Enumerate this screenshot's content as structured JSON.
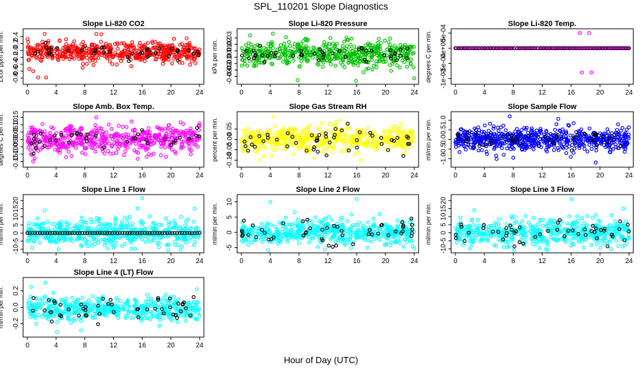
{
  "figure": {
    "title": "SPL_110201  Slope Diagnostics",
    "xlabel": "Hour of Day (UTC)"
  },
  "colors": {
    "red": "#ff0000",
    "green": "#00c000",
    "magenta": "#ff00ff",
    "yellow": "#ffff00",
    "blue": "#0000ff",
    "cyan": "#00ffff",
    "flagged": "#000000"
  },
  "chart_data": [
    {
      "type": "scatter",
      "title": "Slope Li-820 CO2",
      "ylabel": "Licor ppm per min.",
      "color": "red",
      "xlim": [
        0,
        24
      ],
      "xticks": [
        0,
        4,
        8,
        12,
        16,
        20,
        24
      ],
      "ylim": [
        -0.9,
        0.55
      ],
      "yticks": [
        -0.8,
        -0.6,
        -0.4,
        -0.2,
        0.0,
        0.2,
        0.4
      ],
      "ytick_labels": [
        "-0.8",
        "-0.6",
        "-0.4",
        "-0.2",
        "0.0",
        "0.2",
        "0.4"
      ],
      "spread": 0.14,
      "center": -0.05,
      "outliers": [
        [
          2.4,
          0.48
        ],
        [
          9.6,
          0.48
        ],
        [
          10.3,
          0.47
        ],
        [
          1.5,
          -0.78
        ],
        [
          2.6,
          -0.78
        ],
        [
          0.8,
          -0.6
        ],
        [
          7.7,
          -0.5
        ],
        [
          9.2,
          -0.42
        ]
      ],
      "black_n": 40,
      "black_spread": 0.09,
      "black_baseline": false,
      "n": 520
    },
    {
      "type": "scatter",
      "title": "Slope Li-820 Pressure",
      "ylabel": "kPa per min.",
      "color": "green",
      "xlim": [
        0,
        24
      ],
      "xticks": [
        0,
        4,
        8,
        12,
        16,
        20,
        24
      ],
      "ylim": [
        -0.038,
        0.04
      ],
      "yticks": [
        -0.03,
        -0.02,
        -0.01,
        0.0,
        0.01,
        0.02,
        0.03
      ],
      "ytick_labels": [
        "-0.03",
        "-0.02",
        "-0.01",
        "0.00",
        "0.01",
        "0.02",
        "0.03"
      ],
      "spread": 0.01,
      "center": 0.005,
      "outliers": [
        [
          1.2,
          0.034
        ],
        [
          7.8,
          -0.036
        ],
        [
          15.9,
          -0.037
        ],
        [
          24,
          -0.033
        ],
        [
          6.2,
          0.031
        ]
      ],
      "black_n": 45,
      "black_spread": 0.006,
      "black_baseline": false,
      "n": 520
    },
    {
      "type": "scatter",
      "title": "Slope Li-820 Temp.",
      "ylabel": "degrees C per min.",
      "color": "magenta",
      "xlim": [
        0,
        24
      ],
      "xticks": [
        0,
        4,
        8,
        12,
        16,
        20,
        24
      ],
      "ylim": [
        -0.0011,
        0.00055
      ],
      "yticks": [
        -0.001,
        -0.0005,
        0.0,
        0.0005
      ],
      "ytick_labels": [
        "-1e-03",
        "-5e-04",
        "0e+00",
        "5e-04"
      ],
      "spread": 0.0,
      "center": 0.0,
      "outliers": [
        [
          17.2,
          0.0005
        ],
        [
          18.5,
          0.0005
        ],
        [
          17.5,
          -0.0008
        ],
        [
          18.8,
          -0.0008
        ]
      ],
      "black_n": 60,
      "black_spread": 0.0,
      "black_baseline": true,
      "n": 300
    },
    {
      "type": "scatter",
      "title": "Slope Amb. Box Temp.",
      "ylabel": "degrees C per min.",
      "color": "magenta",
      "xlim": [
        0,
        24
      ],
      "xticks": [
        0,
        4,
        8,
        12,
        16,
        20,
        24
      ],
      "ylim": [
        -0.17,
        0.17
      ],
      "yticks": [
        -0.15,
        -0.1,
        -0.05,
        0.0,
        0.05,
        0.1,
        0.15
      ],
      "ytick_labels": [
        "-0.15",
        "-0.10",
        "-0.05",
        "0.00",
        "0.05",
        "0.10",
        "0.15"
      ],
      "spread": 0.045,
      "center": 0.0,
      "outliers": [
        [
          9.6,
          0.15
        ],
        [
          0.5,
          -0.1
        ],
        [
          5.4,
          -0.12
        ],
        [
          8.1,
          -0.1
        ],
        [
          10.5,
          -0.08
        ],
        [
          24,
          0.11
        ]
      ],
      "black_n": 40,
      "black_spread": 0.04,
      "black_baseline": false,
      "n": 520
    },
    {
      "type": "scatter",
      "title": "Slope Gas Stream RH",
      "ylabel": "percent per min.",
      "color": "yellow",
      "xlim": [
        0,
        24
      ],
      "xticks": [
        0,
        4,
        8,
        12,
        16,
        20,
        24
      ],
      "ylim": [
        -0.12,
        0.12
      ],
      "yticks": [
        -0.1,
        -0.05,
        0.0,
        0.05
      ],
      "ytick_labels": [
        "-0.10",
        "-0.05",
        "0.00",
        "0.05"
      ],
      "spread": 0.03,
      "center": 0.0,
      "outliers": [
        [
          4.5,
          0.11
        ],
        [
          13.2,
          0.085
        ],
        [
          3.1,
          -0.08
        ],
        [
          2.6,
          -0.1
        ]
      ],
      "black_n": 50,
      "black_spread": 0.03,
      "black_baseline": false,
      "n": 520
    },
    {
      "type": "scatter",
      "title": "Slope Sample Flow",
      "ylabel": "ml/min per min.",
      "color": "blue",
      "xlim": [
        0,
        24
      ],
      "xticks": [
        0,
        4,
        8,
        12,
        16,
        20,
        24
      ],
      "ylim": [
        -1.3,
        1.3
      ],
      "yticks": [
        -1.0,
        -0.5,
        0.0,
        0.5,
        1.0
      ],
      "ytick_labels": [
        "-1.0",
        "-0.5",
        "0.0",
        "0.5",
        "1.0"
      ],
      "spread": 0.3,
      "center": 0.0,
      "outliers": [
        [
          7.5,
          1.2
        ],
        [
          19.4,
          -1.2
        ],
        [
          8.0,
          -0.95
        ],
        [
          23.1,
          0.6
        ],
        [
          15.6,
          0.75
        ]
      ],
      "black_n": 45,
      "black_spread": 0.25,
      "black_baseline": false,
      "n": 600
    },
    {
      "type": "scatter",
      "title": "Slope Line 1 Flow",
      "ylabel": "ml/min per min.",
      "color": "cyan",
      "xlim": [
        0,
        24
      ],
      "xticks": [
        0,
        4,
        8,
        12,
        16,
        20,
        24
      ],
      "ylim": [
        -10.5,
        22
      ],
      "yticks": [
        -10,
        -5,
        0,
        5,
        10,
        15,
        20
      ],
      "ytick_labels": [
        "-10",
        "-5",
        "0",
        "5",
        "10",
        "15",
        "20"
      ],
      "spread": 4.0,
      "center": 0.0,
      "outliers": [
        [
          16.0,
          21.5
        ],
        [
          2.4,
          14
        ],
        [
          12.0,
          -9
        ],
        [
          7.6,
          -8
        ],
        [
          23.3,
          15
        ]
      ],
      "black_n": 70,
      "black_spread": 0.0,
      "black_baseline": true,
      "n": 520
    },
    {
      "type": "scatter",
      "title": "Slope Line 2 Flow",
      "ylabel": "ml/min per min.",
      "color": "cyan",
      "xlim": [
        0,
        24
      ],
      "xticks": [
        0,
        4,
        8,
        12,
        16,
        20,
        24
      ],
      "ylim": [
        -5.8,
        11.5
      ],
      "yticks": [
        -5,
        0,
        5,
        10
      ],
      "ytick_labels": [
        "-5",
        "0",
        "5",
        "10"
      ],
      "spread": 2.0,
      "center": 0.0,
      "outliers": [
        [
          16.0,
          11
        ],
        [
          4.0,
          10
        ],
        [
          19.2,
          6
        ],
        [
          17.5,
          -5
        ],
        [
          20.7,
          -4.2
        ],
        [
          24,
          -5.2
        ]
      ],
      "black_n": 50,
      "black_spread": 2.0,
      "black_baseline": false,
      "n": 520
    },
    {
      "type": "scatter",
      "title": "Slope Line 3 Flow",
      "ylabel": "ml/min per min.",
      "color": "cyan",
      "xlim": [
        0,
        24
      ],
      "xticks": [
        0,
        4,
        8,
        12,
        16,
        20,
        24
      ],
      "ylim": [
        -10.8,
        22
      ],
      "yticks": [
        -10,
        -5,
        0,
        5,
        10,
        15,
        20
      ],
      "ytick_labels": [
        "-10",
        "-5",
        "0",
        "5",
        "10",
        "15",
        "20"
      ],
      "spread": 4.0,
      "center": 0.0,
      "outliers": [
        [
          16.1,
          21
        ],
        [
          2.6,
          14
        ],
        [
          23.2,
          15
        ],
        [
          7.2,
          -9
        ],
        [
          16.0,
          -8
        ]
      ],
      "black_n": 50,
      "black_spread": 4.0,
      "black_baseline": false,
      "n": 520
    },
    {
      "type": "scatter",
      "title": "Slope Line 4 (LT) Flow",
      "ylabel": "ml/min per min.",
      "color": "cyan",
      "xlim": [
        0,
        24
      ],
      "xticks": [
        0,
        4,
        8,
        12,
        16,
        20,
        24
      ],
      "ylim": [
        -0.33,
        0.33
      ],
      "yticks": [
        -0.2,
        0.0,
        0.2
      ],
      "ytick_labels": [
        "-0.2",
        "0.0",
        "0.2"
      ],
      "spread": 0.07,
      "center": -0.02,
      "outliers": [
        [
          2.5,
          0.3
        ],
        [
          4.1,
          -0.3
        ],
        [
          7.5,
          -0.28
        ],
        [
          0.5,
          0.25
        ],
        [
          23.6,
          0.22
        ]
      ],
      "black_n": 50,
      "black_spread": 0.07,
      "black_baseline": false,
      "n": 520
    }
  ]
}
